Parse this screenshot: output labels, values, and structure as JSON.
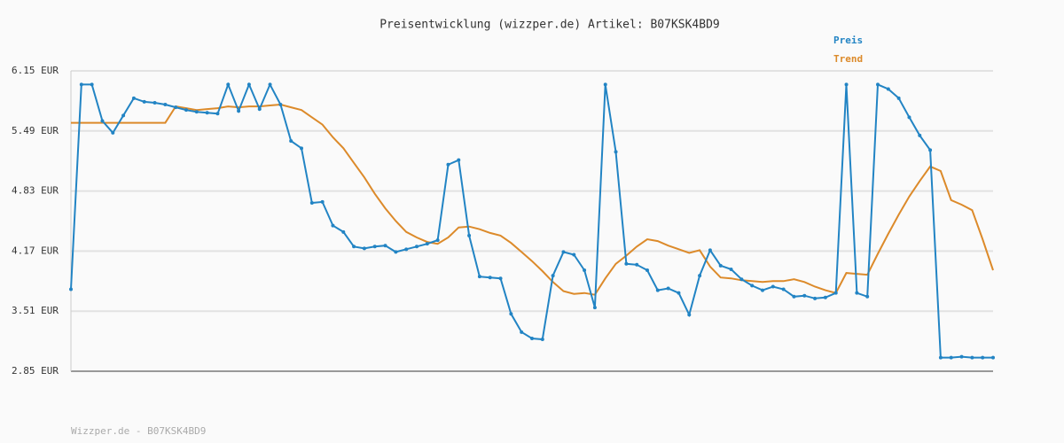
{
  "chart_data": {
    "type": "line",
    "title": "Preisentwicklung (wizzper.de) Artikel: B07KSK4BD9",
    "footer": "Wizzper.de - B07KSK4BD9",
    "categories": [
      null,
      null,
      null,
      null,
      null,
      null,
      null,
      null,
      null,
      null,
      null,
      null,
      null,
      null,
      null,
      null,
      null,
      null,
      null,
      null,
      null,
      null,
      null,
      null,
      null,
      null,
      null,
      null,
      null,
      null,
      null,
      null,
      null,
      null,
      null,
      null,
      null,
      null,
      null,
      null,
      null,
      null,
      null,
      null,
      null,
      null,
      null,
      null,
      null,
      null,
      null,
      null,
      null,
      null,
      null,
      null,
      null,
      null,
      null,
      null,
      null,
      null,
      null,
      null,
      null,
      null,
      null,
      null,
      null,
      null,
      null,
      null,
      null,
      null,
      null,
      null,
      null,
      null,
      null,
      null,
      null,
      null,
      null,
      null,
      null,
      null,
      null,
      null,
      null
    ],
    "series": [
      {
        "name": "Preis",
        "color": "#2284c4",
        "markers": true,
        "values": [
          3.75,
          6.0,
          6.0,
          5.6,
          5.47,
          5.66,
          5.85,
          5.81,
          5.8,
          5.78,
          5.75,
          5.72,
          5.7,
          5.69,
          5.68,
          6.0,
          5.71,
          6.0,
          5.73,
          6.0,
          5.78,
          5.38,
          5.3,
          4.7,
          4.71,
          4.45,
          4.38,
          4.22,
          4.2,
          4.22,
          4.23,
          4.16,
          4.19,
          4.22,
          4.25,
          4.29,
          5.12,
          5.17,
          4.34,
          3.89,
          3.88,
          3.87,
          3.48,
          3.28,
          3.21,
          3.2,
          3.9,
          4.16,
          4.13,
          3.96,
          3.55,
          6.0,
          5.26,
          4.03,
          4.02,
          3.96,
          3.74,
          3.76,
          3.71,
          3.47,
          3.9,
          4.18,
          4.01,
          3.97,
          3.86,
          3.79,
          3.74,
          3.78,
          3.75,
          3.67,
          3.68,
          3.65,
          3.66,
          3.71,
          6.0,
          3.71,
          3.67,
          6.0,
          5.95,
          5.85,
          5.64,
          5.44,
          5.28,
          3.0,
          3.0,
          3.01,
          3.0,
          3.0,
          3.0
        ]
      },
      {
        "name": "Trend",
        "color": "#dc8a2a",
        "markers": false,
        "values": [
          5.58,
          5.58,
          5.58,
          5.58,
          5.58,
          5.58,
          5.58,
          5.58,
          5.58,
          5.58,
          5.76,
          5.74,
          5.72,
          5.73,
          5.74,
          5.76,
          5.75,
          5.76,
          5.76,
          5.77,
          5.78,
          5.75,
          5.72,
          5.64,
          5.56,
          5.42,
          5.3,
          5.14,
          4.98,
          4.8,
          4.64,
          4.5,
          4.38,
          4.32,
          4.27,
          4.25,
          4.32,
          4.43,
          4.44,
          4.41,
          4.37,
          4.34,
          4.26,
          4.16,
          4.06,
          3.95,
          3.83,
          3.73,
          3.7,
          3.71,
          3.69,
          3.87,
          4.03,
          4.12,
          4.22,
          4.3,
          4.28,
          4.23,
          4.19,
          4.15,
          4.18,
          4.0,
          3.88,
          3.87,
          3.85,
          3.84,
          3.83,
          3.84,
          3.84,
          3.86,
          3.83,
          3.78,
          3.74,
          3.71,
          3.93,
          3.92,
          3.91,
          4.14,
          4.36,
          4.57,
          4.77,
          4.94,
          5.1,
          5.05,
          4.73,
          4.68,
          4.62,
          4.3,
          3.96
        ]
      }
    ],
    "ylim": [
      2.85,
      6.15
    ],
    "yticks": [
      {
        "value": 2.85,
        "label": "2.85 EUR"
      },
      {
        "value": 3.51,
        "label": "3.51 EUR"
      },
      {
        "value": 4.17,
        "label": "4.17 EUR"
      },
      {
        "value": 4.83,
        "label": "4.83 EUR"
      },
      {
        "value": 5.49,
        "label": "5.49 EUR"
      },
      {
        "value": 6.15,
        "label": "6.15 EUR"
      }
    ],
    "grid": true
  }
}
